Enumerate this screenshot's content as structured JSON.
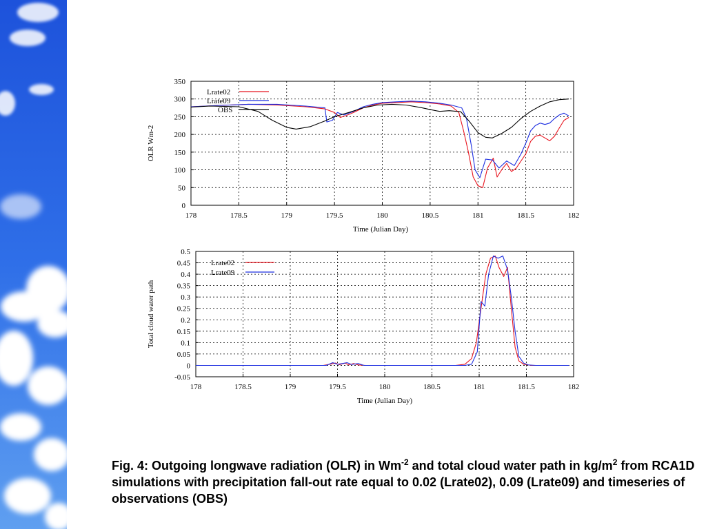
{
  "slide": {
    "caption": {
      "t1": "Fig. 4: Outgoing longwave radiation (OLR) in Wm",
      "s1": "-2",
      "t2": " and total cloud water path in kg/m",
      "s2": "2",
      "t3": " from RCA1D simulations with precipitation fall-out rate equal to 0.02 (Lrate02), 0.09 (Lrate09) and timeseries of observations (OBS)"
    },
    "colors": {
      "sky_top": "#1c4fd8",
      "sky_bottom": "#5e9cf0",
      "cloud": "#ffffff"
    }
  },
  "chart_data": [
    {
      "type": "line",
      "xlabel": "Time (Julian Day)",
      "ylabel": "OLR  Wm-2",
      "xlim": [
        178,
        182
      ],
      "ylim": [
        0,
        350
      ],
      "xticks": [
        "178",
        "178.5",
        "179",
        "179.5",
        "180",
        "180.5",
        "181",
        "181.5",
        "182"
      ],
      "yticks": [
        "0",
        "50",
        "100",
        "150",
        "200",
        "250",
        "300",
        "350"
      ],
      "grid": true,
      "legend_position": "top-left",
      "series": [
        {
          "name": "Lrate02",
          "color": "#e8141e",
          "points": [
            [
              178.0,
              278
            ],
            [
              178.3,
              282
            ],
            [
              178.6,
              285
            ],
            [
              178.9,
              283
            ],
            [
              179.2,
              278
            ],
            [
              179.4,
              272
            ],
            [
              179.5,
              262
            ],
            [
              179.56,
              248
            ],
            [
              179.62,
              253
            ],
            [
              179.7,
              262
            ],
            [
              179.8,
              275
            ],
            [
              179.9,
              283
            ],
            [
              180.0,
              288
            ],
            [
              180.15,
              290
            ],
            [
              180.3,
              292
            ],
            [
              180.45,
              290
            ],
            [
              180.6,
              286
            ],
            [
              180.72,
              280
            ],
            [
              180.8,
              262
            ],
            [
              180.85,
              210
            ],
            [
              180.9,
              150
            ],
            [
              180.95,
              80
            ],
            [
              181.0,
              55
            ],
            [
              181.05,
              50
            ],
            [
              181.1,
              105
            ],
            [
              181.16,
              133
            ],
            [
              181.2,
              80
            ],
            [
              181.26,
              105
            ],
            [
              181.3,
              118
            ],
            [
              181.35,
              95
            ],
            [
              181.4,
              105
            ],
            [
              181.5,
              145
            ],
            [
              181.55,
              180
            ],
            [
              181.6,
              195
            ],
            [
              181.65,
              198
            ],
            [
              181.7,
              190
            ],
            [
              181.75,
              182
            ],
            [
              181.8,
              195
            ],
            [
              181.85,
              218
            ],
            [
              181.9,
              240
            ],
            [
              181.95,
              248
            ]
          ]
        },
        {
          "name": "Lrate09",
          "color": "#1c2ee0",
          "points": [
            [
              178.0,
              278
            ],
            [
              178.3,
              282
            ],
            [
              178.6,
              285
            ],
            [
              178.9,
              285
            ],
            [
              179.2,
              280
            ],
            [
              179.4,
              275
            ],
            [
              179.42,
              235
            ],
            [
              179.48,
              240
            ],
            [
              179.53,
              262
            ],
            [
              179.6,
              255
            ],
            [
              179.7,
              265
            ],
            [
              179.8,
              278
            ],
            [
              179.9,
              285
            ],
            [
              180.0,
              290
            ],
            [
              180.15,
              292
            ],
            [
              180.3,
              294
            ],
            [
              180.45,
              292
            ],
            [
              180.6,
              288
            ],
            [
              180.72,
              283
            ],
            [
              180.83,
              275
            ],
            [
              180.88,
              245
            ],
            [
              180.93,
              170
            ],
            [
              180.97,
              100
            ],
            [
              181.02,
              78
            ],
            [
              181.08,
              130
            ],
            [
              181.15,
              128
            ],
            [
              181.22,
              105
            ],
            [
              181.3,
              125
            ],
            [
              181.38,
              112
            ],
            [
              181.45,
              145
            ],
            [
              181.5,
              175
            ],
            [
              181.55,
              210
            ],
            [
              181.6,
              225
            ],
            [
              181.65,
              232
            ],
            [
              181.7,
              228
            ],
            [
              181.75,
              232
            ],
            [
              181.8,
              245
            ],
            [
              181.85,
              255
            ],
            [
              181.9,
              260
            ],
            [
              181.95,
              252
            ]
          ]
        },
        {
          "name": "OBS",
          "color": "#000000",
          "points": [
            [
              178.0,
              277
            ],
            [
              178.2,
              280
            ],
            [
              178.5,
              278
            ],
            [
              178.7,
              265
            ],
            [
              178.85,
              240
            ],
            [
              179.0,
              220
            ],
            [
              179.1,
              215
            ],
            [
              179.25,
              222
            ],
            [
              179.4,
              238
            ],
            [
              179.5,
              250
            ],
            [
              179.65,
              262
            ],
            [
              179.8,
              275
            ],
            [
              179.95,
              283
            ],
            [
              180.1,
              285
            ],
            [
              180.25,
              283
            ],
            [
              180.4,
              276
            ],
            [
              180.5,
              270
            ],
            [
              180.6,
              265
            ],
            [
              180.7,
              267
            ],
            [
              180.82,
              264
            ],
            [
              180.9,
              240
            ],
            [
              181.0,
              205
            ],
            [
              181.08,
              192
            ],
            [
              181.15,
              190
            ],
            [
              181.25,
              203
            ],
            [
              181.35,
              220
            ],
            [
              181.45,
              245
            ],
            [
              181.55,
              265
            ],
            [
              181.65,
              280
            ],
            [
              181.75,
              292
            ],
            [
              181.85,
              298
            ],
            [
              181.95,
              300
            ]
          ]
        }
      ]
    },
    {
      "type": "line",
      "xlabel": "Time (Julian Day)",
      "ylabel": "Total  cloud  water  path",
      "xlim": [
        178,
        182
      ],
      "ylim": [
        -0.05,
        0.5
      ],
      "xticks": [
        "178",
        "178.5",
        "179",
        "179.5",
        "180",
        "180.5",
        "181",
        "181.5",
        "182"
      ],
      "yticks": [
        "-0.05",
        "0",
        "0.05",
        "0.1",
        "0.15",
        "0.2",
        "0.25",
        "0.3",
        "0.35",
        "0.4",
        "0.45",
        "0.5"
      ],
      "grid": true,
      "legend_position": "top-left",
      "series": [
        {
          "name": "Lrate02",
          "color": "#e8141e",
          "points": [
            [
              178.0,
              0
            ],
            [
              179.35,
              0
            ],
            [
              179.42,
              0.005
            ],
            [
              179.48,
              0.01
            ],
            [
              179.52,
              0.003
            ],
            [
              179.58,
              0.01
            ],
            [
              179.62,
              0.002
            ],
            [
              179.67,
              0.008
            ],
            [
              179.72,
              0.002
            ],
            [
              179.8,
              0
            ],
            [
              180.75,
              0
            ],
            [
              180.85,
              0.005
            ],
            [
              180.92,
              0.03
            ],
            [
              180.97,
              0.1
            ],
            [
              181.02,
              0.25
            ],
            [
              181.07,
              0.4
            ],
            [
              181.12,
              0.47
            ],
            [
              181.17,
              0.48
            ],
            [
              181.21,
              0.43
            ],
            [
              181.26,
              0.39
            ],
            [
              181.3,
              0.43
            ],
            [
              181.34,
              0.25
            ],
            [
              181.38,
              0.08
            ],
            [
              181.42,
              0.02
            ],
            [
              181.47,
              0.005
            ],
            [
              181.55,
              0
            ],
            [
              181.95,
              0
            ]
          ]
        },
        {
          "name": "Lrate09",
          "color": "#1c2ee0",
          "points": [
            [
              178.0,
              0
            ],
            [
              179.38,
              0
            ],
            [
              179.45,
              0.012
            ],
            [
              179.5,
              0.005
            ],
            [
              179.55,
              0.008
            ],
            [
              179.6,
              0.012
            ],
            [
              179.65,
              0.004
            ],
            [
              179.72,
              0.008
            ],
            [
              179.78,
              0
            ],
            [
              180.85,
              0
            ],
            [
              180.92,
              0.005
            ],
            [
              180.98,
              0.06
            ],
            [
              181.02,
              0.28
            ],
            [
              181.06,
              0.26
            ],
            [
              181.1,
              0.4
            ],
            [
              181.15,
              0.48
            ],
            [
              181.2,
              0.47
            ],
            [
              181.25,
              0.48
            ],
            [
              181.3,
              0.42
            ],
            [
              181.34,
              0.3
            ],
            [
              181.38,
              0.15
            ],
            [
              181.42,
              0.04
            ],
            [
              181.47,
              0.01
            ],
            [
              181.52,
              0.002
            ],
            [
              181.6,
              0
            ],
            [
              181.95,
              0
            ]
          ]
        }
      ]
    }
  ]
}
